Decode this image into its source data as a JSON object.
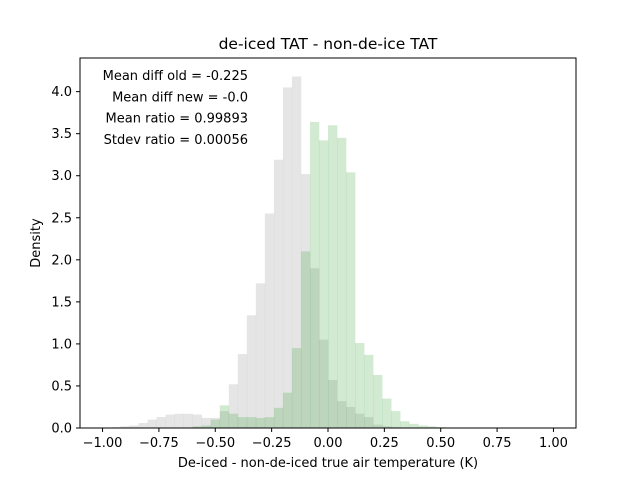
{
  "chart_data": {
    "type": "histogram",
    "title": "de-iced TAT - non-de-ice TAT",
    "xlabel": "De-iced - non-de-iced true air temperature (K)",
    "ylabel": "Density",
    "xlim": [
      -1.1,
      1.1
    ],
    "ylim": [
      0,
      4.4
    ],
    "x_ticks": [
      -1.0,
      -0.75,
      -0.5,
      -0.25,
      0.0,
      0.25,
      0.5,
      0.75,
      1.0
    ],
    "x_tick_labels": [
      "−1.00",
      "−0.75",
      "−0.50",
      "−0.25",
      "0.00",
      "0.25",
      "0.50",
      "0.75",
      "1.00"
    ],
    "y_ticks": [
      0.0,
      0.5,
      1.0,
      1.5,
      2.0,
      2.5,
      3.0,
      3.5,
      4.0
    ],
    "y_tick_labels": [
      "0.0",
      "0.5",
      "1.0",
      "1.5",
      "2.0",
      "2.5",
      "3.0",
      "3.5",
      "4.0"
    ],
    "grid": false,
    "legend": "none",
    "annotations": [
      "Mean diff old = -0.225",
      "Mean diff new = -0.0",
      "Mean ratio = 0.99893",
      "Stdev ratio = 0.00056"
    ],
    "series": [
      {
        "color": "#bdbdbd",
        "alpha": 0.4,
        "bins": [
          {
            "x0": -0.96,
            "x1": -0.92,
            "y": 0.01
          },
          {
            "x0": -0.92,
            "x1": -0.88,
            "y": 0.02
          },
          {
            "x0": -0.88,
            "x1": -0.84,
            "y": 0.03
          },
          {
            "x0": -0.84,
            "x1": -0.8,
            "y": 0.06
          },
          {
            "x0": -0.8,
            "x1": -0.76,
            "y": 0.1
          },
          {
            "x0": -0.76,
            "x1": -0.72,
            "y": 0.13
          },
          {
            "x0": -0.72,
            "x1": -0.68,
            "y": 0.16
          },
          {
            "x0": -0.68,
            "x1": -0.64,
            "y": 0.17
          },
          {
            "x0": -0.64,
            "x1": -0.6,
            "y": 0.17
          },
          {
            "x0": -0.6,
            "x1": -0.56,
            "y": 0.16
          },
          {
            "x0": -0.56,
            "x1": -0.52,
            "y": 0.12
          },
          {
            "x0": -0.52,
            "x1": -0.48,
            "y": 0.12
          },
          {
            "x0": -0.48,
            "x1": -0.44,
            "y": 0.2
          },
          {
            "x0": -0.44,
            "x1": -0.4,
            "y": 0.52
          },
          {
            "x0": -0.4,
            "x1": -0.36,
            "y": 0.88
          },
          {
            "x0": -0.36,
            "x1": -0.32,
            "y": 1.34
          },
          {
            "x0": -0.32,
            "x1": -0.28,
            "y": 1.72
          },
          {
            "x0": -0.28,
            "x1": -0.24,
            "y": 2.55
          },
          {
            "x0": -0.24,
            "x1": -0.2,
            "y": 3.19
          },
          {
            "x0": -0.2,
            "x1": -0.16,
            "y": 4.05
          },
          {
            "x0": -0.16,
            "x1": -0.12,
            "y": 4.18
          },
          {
            "x0": -0.12,
            "x1": -0.08,
            "y": 3.02
          },
          {
            "x0": -0.08,
            "x1": -0.04,
            "y": 1.9
          },
          {
            "x0": -0.04,
            "x1": 0.0,
            "y": 1.05
          },
          {
            "x0": 0.0,
            "x1": 0.04,
            "y": 0.57
          },
          {
            "x0": 0.04,
            "x1": 0.08,
            "y": 0.32
          },
          {
            "x0": 0.08,
            "x1": 0.12,
            "y": 0.25
          },
          {
            "x0": 0.12,
            "x1": 0.16,
            "y": 0.17
          },
          {
            "x0": 0.16,
            "x1": 0.2,
            "y": 0.13
          },
          {
            "x0": 0.2,
            "x1": 0.24,
            "y": 0.04
          },
          {
            "x0": 0.24,
            "x1": 0.28,
            "y": 0.02
          },
          {
            "x0": 0.28,
            "x1": 0.32,
            "y": 0.01
          }
        ]
      },
      {
        "color": "#2ca02c",
        "alpha": 0.22,
        "bins": [
          {
            "x0": -0.6,
            "x1": -0.56,
            "y": 0.02
          },
          {
            "x0": -0.56,
            "x1": -0.52,
            "y": 0.03
          },
          {
            "x0": -0.52,
            "x1": -0.48,
            "y": 0.1
          },
          {
            "x0": -0.48,
            "x1": -0.44,
            "y": 0.27
          },
          {
            "x0": -0.44,
            "x1": -0.4,
            "y": 0.17
          },
          {
            "x0": -0.4,
            "x1": -0.36,
            "y": 0.13
          },
          {
            "x0": -0.36,
            "x1": -0.32,
            "y": 0.13
          },
          {
            "x0": -0.32,
            "x1": -0.28,
            "y": 0.12
          },
          {
            "x0": -0.28,
            "x1": -0.24,
            "y": 0.13
          },
          {
            "x0": -0.24,
            "x1": -0.2,
            "y": 0.24
          },
          {
            "x0": -0.2,
            "x1": -0.16,
            "y": 0.42
          },
          {
            "x0": -0.16,
            "x1": -0.12,
            "y": 0.95
          },
          {
            "x0": -0.12,
            "x1": -0.08,
            "y": 2.1
          },
          {
            "x0": -0.08,
            "x1": -0.04,
            "y": 3.64
          },
          {
            "x0": -0.04,
            "x1": 0.0,
            "y": 3.42
          },
          {
            "x0": 0.0,
            "x1": 0.04,
            "y": 3.6
          },
          {
            "x0": 0.04,
            "x1": 0.08,
            "y": 3.45
          },
          {
            "x0": 0.08,
            "x1": 0.12,
            "y": 3.04
          },
          {
            "x0": 0.12,
            "x1": 0.16,
            "y": 1.01
          },
          {
            "x0": 0.16,
            "x1": 0.2,
            "y": 0.87
          },
          {
            "x0": 0.2,
            "x1": 0.24,
            "y": 0.63
          },
          {
            "x0": 0.24,
            "x1": 0.28,
            "y": 0.35
          },
          {
            "x0": 0.28,
            "x1": 0.32,
            "y": 0.2
          },
          {
            "x0": 0.32,
            "x1": 0.36,
            "y": 0.08
          },
          {
            "x0": 0.36,
            "x1": 0.4,
            "y": 0.05
          },
          {
            "x0": 0.4,
            "x1": 0.44,
            "y": 0.03
          },
          {
            "x0": 0.44,
            "x1": 0.48,
            "y": 0.02
          },
          {
            "x0": 0.48,
            "x1": 0.52,
            "y": 0.01
          }
        ]
      }
    ]
  }
}
